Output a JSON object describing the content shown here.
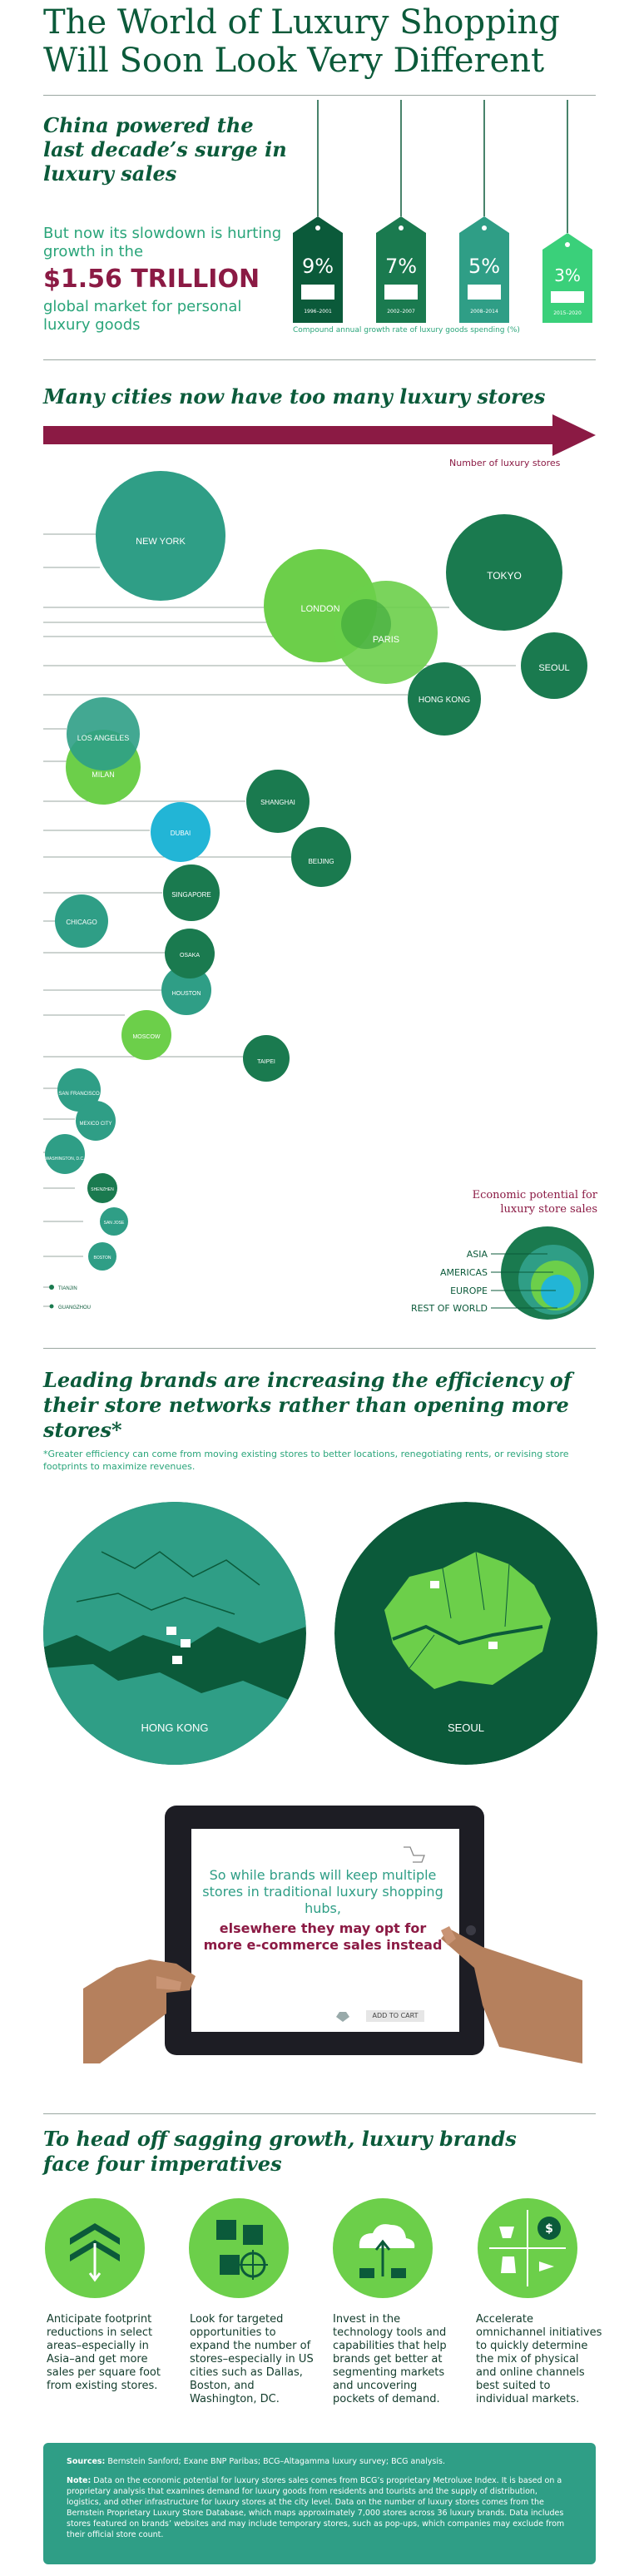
{
  "title": "The World of Luxury Shopping Will Soon Look Very Different",
  "intro": {
    "headline": "China powered the last decade’s surge in luxury sales",
    "line1": "But now its slowdown is hurting growth in the",
    "amount": "$1.56 TRILLION",
    "line2": "global market for personal luxury goods"
  },
  "tags": {
    "values": [
      "9%",
      "7%",
      "5%",
      "3%"
    ],
    "periods": [
      "1996–2001",
      "2002–2007",
      "2008–2014",
      "2015–2020"
    ],
    "caption": "Compound annual growth rate of luxury goods spending (%)"
  },
  "cities_section": {
    "heading": "Many cities now have too many luxury stores",
    "axis_label": "Number of luxury stores",
    "cities": [
      "NEW YORK",
      "LONDON",
      "PARIS",
      "TOKYO",
      "SEOUL",
      "HONG KONG",
      "LOS ANGELES",
      "MILAN",
      "SHANGHAI",
      "DUBAI",
      "BEIJING",
      "SINGAPORE",
      "CHICAGO",
      "OSAKA",
      "HOUSTON",
      "MOSCOW",
      "TAIPEI",
      "SAN FRANCISCO",
      "MEXICO CITY",
      "WASHINGTON, D.C.",
      "SHENZHEN",
      "SAN JOSE",
      "BOSTON",
      "TIANJIN",
      "GUANGZHOU"
    ],
    "legend_title": "Economic potential for luxury store sales",
    "legend_items": [
      "ASIA",
      "AMERICAS",
      "EUROPE",
      "REST OF WORLD"
    ]
  },
  "brands": {
    "heading": "Leading brands are increasing the efficiency of their store networks rather than opening more stores*",
    "note": "*Greater efficiency can come from moving existing stores to better locations, renegotiating rents, or revising store footprints to maximize revenues.",
    "map1": "HONG KONG",
    "map2": "SEOUL"
  },
  "tablet": {
    "line1": "So while brands will keep multiple stores in traditional luxury shopping hubs,",
    "line2": "elsewhere they may opt for more e-commerce sales instead",
    "button": "ADD TO CART"
  },
  "imperatives": {
    "heading": "To head off sagging growth, luxury brands face four imperatives",
    "items": [
      "Anticipate footprint reductions in select areas–especially in Asia–and get more sales per square foot from existing stores.",
      "Look for targeted opportunities to expand the number of stores–especially in US cities such as Dallas, Boston, and Washington, DC.",
      "Invest in the technology tools and capabilities that help brands get better at segmenting markets and uncovering pockets of demand.",
      "Accelerate omnichannel initiatives to quickly determine the mix of physical and online channels best suited to individual markets."
    ]
  },
  "footer": {
    "sources_label": "Sources:",
    "sources": "Bernstein Sanford; Exane BNP Paribas; BCG–Altagamma luxury survey; BCG analysis.",
    "note_label": "Note:",
    "note": "Data on the economic potential for luxury stores sales comes from BCG’s proprietary Metroluxe Index. It is based on a proprietary analysis that examines demand for luxury goods from residents and tourists and the supply of distribution, logistics, and other infrastructure for luxury stores at the city level. Data on the number of luxury stores comes from the Bernstein Proprietary Luxury Store Database, which maps approximately 7,000 stores across 36 luxury brands. Data includes stores featured on brands’ websites and may include temporary stores, such as pop-ups, which companies may exclude from their official store count."
  },
  "colors": {
    "dark_green": "#0b5a3a",
    "asia": "#1a7a4f",
    "americas": "#2f9e86",
    "europe": "#6ccf4a",
    "rest_of_world": "#22b5d6",
    "maroon": "#8b1a44"
  }
}
